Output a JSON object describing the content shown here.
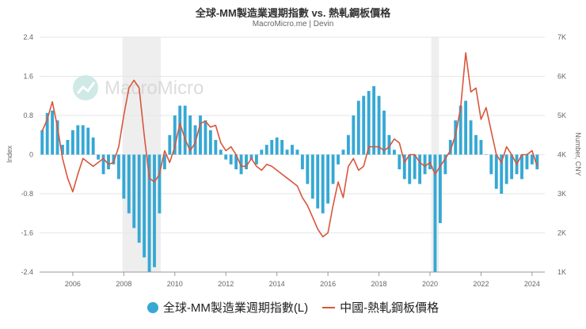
{
  "title": "全球-MM製造業週期指數 vs. 熱軋鋼板價格",
  "subtitle": "MacroMicro.me | Devin",
  "watermark": "MacroMicro",
  "colors": {
    "bars": "#36a8d4",
    "line": "#d9553b",
    "recession": "#eeeeee",
    "grid": "#e6e6e6"
  },
  "chart_data": {
    "type": "bar+line",
    "left_axis": {
      "label": "Index",
      "ylim": [
        -2.4,
        2.4
      ],
      "ticks": [
        "2.4",
        "1.6",
        "0.8",
        "0",
        "-0.8",
        "-1.6",
        "-2.4"
      ],
      "tick_values": [
        2.4,
        1.6,
        0.8,
        0,
        -0.8,
        -1.6,
        -2.4
      ]
    },
    "right_axis": {
      "label": "Number, CNY",
      "ylim": [
        1000,
        7000
      ],
      "ticks": [
        "7K",
        "6K",
        "5K",
        "4K",
        "3K",
        "2K",
        "1K"
      ],
      "tick_values": [
        7000,
        6000,
        5000,
        4000,
        3000,
        2000,
        1000
      ]
    },
    "x_axis": {
      "xlim": [
        2004.7,
        2024.5
      ],
      "ticks": [
        "2006",
        "2008",
        "2010",
        "2012",
        "2014",
        "2016",
        "2018",
        "2020",
        "2022",
        "2024"
      ],
      "tick_values": [
        2006,
        2008,
        2010,
        2012,
        2014,
        2016,
        2018,
        2020,
        2022,
        2024
      ]
    },
    "shaded_periods": [
      [
        2007.95,
        2009.45
      ],
      [
        2020.05,
        2020.35
      ]
    ],
    "series": [
      {
        "name": "全球-MM製造業週期指數(L)",
        "type": "bar",
        "axis": "left",
        "points": [
          [
            2004.8,
            0.5
          ],
          [
            2005.0,
            0.85
          ],
          [
            2005.2,
            0.9
          ],
          [
            2005.4,
            0.7
          ],
          [
            2005.6,
            0.2
          ],
          [
            2005.8,
            0.3
          ],
          [
            2006.0,
            0.5
          ],
          [
            2006.2,
            0.6
          ],
          [
            2006.4,
            0.6
          ],
          [
            2006.6,
            0.55
          ],
          [
            2006.8,
            0.35
          ],
          [
            2007.0,
            -0.1
          ],
          [
            2007.2,
            -0.4
          ],
          [
            2007.4,
            -0.3
          ],
          [
            2007.6,
            -0.2
          ],
          [
            2007.8,
            -0.5
          ],
          [
            2008.0,
            -0.9
          ],
          [
            2008.2,
            -1.2
          ],
          [
            2008.4,
            -1.5
          ],
          [
            2008.6,
            -1.8
          ],
          [
            2008.8,
            -2.1
          ],
          [
            2009.0,
            -2.4
          ],
          [
            2009.2,
            -2.3
          ],
          [
            2009.4,
            -1.2
          ],
          [
            2009.6,
            -0.3
          ],
          [
            2009.8,
            0.4
          ],
          [
            2010.0,
            0.8
          ],
          [
            2010.2,
            1.0
          ],
          [
            2010.4,
            1.0
          ],
          [
            2010.6,
            0.8
          ],
          [
            2010.8,
            0.6
          ],
          [
            2011.0,
            0.8
          ],
          [
            2011.2,
            0.7
          ],
          [
            2011.4,
            0.5
          ],
          [
            2011.6,
            0.3
          ],
          [
            2011.8,
            0.1
          ],
          [
            2012.0,
            -0.1
          ],
          [
            2012.2,
            -0.2
          ],
          [
            2012.4,
            -0.3
          ],
          [
            2012.6,
            -0.4
          ],
          [
            2012.8,
            -0.3
          ],
          [
            2013.0,
            -0.1
          ],
          [
            2013.2,
            -0.2
          ],
          [
            2013.4,
            0.1
          ],
          [
            2013.6,
            0.2
          ],
          [
            2013.8,
            0.3
          ],
          [
            2014.0,
            0.35
          ],
          [
            2014.2,
            0.3
          ],
          [
            2014.4,
            0.1
          ],
          [
            2014.6,
            0.2
          ],
          [
            2014.8,
            0.1
          ],
          [
            2015.0,
            -0.3
          ],
          [
            2015.2,
            -0.6
          ],
          [
            2015.4,
            -0.9
          ],
          [
            2015.6,
            -1.1
          ],
          [
            2015.8,
            -1.2
          ],
          [
            2016.0,
            -1.0
          ],
          [
            2016.2,
            -0.6
          ],
          [
            2016.4,
            -0.2
          ],
          [
            2016.6,
            0.1
          ],
          [
            2016.8,
            0.4
          ],
          [
            2017.0,
            0.8
          ],
          [
            2017.2,
            1.1
          ],
          [
            2017.4,
            1.2
          ],
          [
            2017.6,
            1.3
          ],
          [
            2017.8,
            1.4
          ],
          [
            2018.0,
            1.2
          ],
          [
            2018.2,
            0.9
          ],
          [
            2018.4,
            0.4
          ],
          [
            2018.6,
            0.1
          ],
          [
            2018.8,
            -0.3
          ],
          [
            2019.0,
            -0.5
          ],
          [
            2019.2,
            -0.6
          ],
          [
            2019.4,
            -0.5
          ],
          [
            2019.6,
            -0.6
          ],
          [
            2019.8,
            -0.4
          ],
          [
            2020.0,
            -0.3
          ],
          [
            2020.2,
            -2.4
          ],
          [
            2020.4,
            -1.4
          ],
          [
            2020.6,
            -0.4
          ],
          [
            2020.8,
            0.3
          ],
          [
            2021.0,
            0.7
          ],
          [
            2021.2,
            1.0
          ],
          [
            2021.4,
            1.1
          ],
          [
            2021.6,
            0.7
          ],
          [
            2021.8,
            0.4
          ],
          [
            2022.0,
            0.3
          ],
          [
            2022.2,
            0.0
          ],
          [
            2022.4,
            -0.4
          ],
          [
            2022.6,
            -0.7
          ],
          [
            2022.8,
            -0.8
          ],
          [
            2023.0,
            -0.6
          ],
          [
            2023.2,
            -0.5
          ],
          [
            2023.4,
            -0.4
          ],
          [
            2023.6,
            -0.5
          ],
          [
            2023.8,
            -0.3
          ],
          [
            2024.0,
            -0.2
          ],
          [
            2024.2,
            -0.3
          ]
        ]
      },
      {
        "name": "中國-熱軋鋼板價格",
        "type": "line",
        "axis": "right",
        "points": [
          [
            2004.8,
            4600
          ],
          [
            2005.0,
            4900
          ],
          [
            2005.2,
            5350
          ],
          [
            2005.4,
            4700
          ],
          [
            2005.6,
            3900
          ],
          [
            2005.8,
            3400
          ],
          [
            2006.0,
            3050
          ],
          [
            2006.2,
            3500
          ],
          [
            2006.4,
            3900
          ],
          [
            2006.6,
            3800
          ],
          [
            2006.8,
            3700
          ],
          [
            2007.0,
            3800
          ],
          [
            2007.2,
            3900
          ],
          [
            2007.4,
            3750
          ],
          [
            2007.6,
            3800
          ],
          [
            2007.8,
            4200
          ],
          [
            2008.0,
            5000
          ],
          [
            2008.2,
            5700
          ],
          [
            2008.4,
            5900
          ],
          [
            2008.6,
            5700
          ],
          [
            2008.8,
            4500
          ],
          [
            2009.0,
            3400
          ],
          [
            2009.2,
            3300
          ],
          [
            2009.4,
            3500
          ],
          [
            2009.6,
            4100
          ],
          [
            2009.8,
            3800
          ],
          [
            2010.0,
            4200
          ],
          [
            2010.2,
            4800
          ],
          [
            2010.4,
            4400
          ],
          [
            2010.6,
            4100
          ],
          [
            2010.8,
            4300
          ],
          [
            2011.0,
            4800
          ],
          [
            2011.2,
            4850
          ],
          [
            2011.4,
            4700
          ],
          [
            2011.6,
            4750
          ],
          [
            2011.8,
            4300
          ],
          [
            2012.0,
            4100
          ],
          [
            2012.2,
            4200
          ],
          [
            2012.4,
            4000
          ],
          [
            2012.6,
            3700
          ],
          [
            2012.8,
            3700
          ],
          [
            2013.0,
            3900
          ],
          [
            2013.2,
            3700
          ],
          [
            2013.4,
            3600
          ],
          [
            2013.6,
            3750
          ],
          [
            2013.8,
            3700
          ],
          [
            2014.0,
            3600
          ],
          [
            2014.2,
            3500
          ],
          [
            2014.4,
            3400
          ],
          [
            2014.6,
            3300
          ],
          [
            2014.8,
            3200
          ],
          [
            2015.0,
            2900
          ],
          [
            2015.2,
            2700
          ],
          [
            2015.4,
            2400
          ],
          [
            2015.6,
            2100
          ],
          [
            2015.8,
            1900
          ],
          [
            2016.0,
            2000
          ],
          [
            2016.2,
            2700
          ],
          [
            2016.4,
            3300
          ],
          [
            2016.6,
            2900
          ],
          [
            2016.8,
            3700
          ],
          [
            2017.0,
            3900
          ],
          [
            2017.2,
            3600
          ],
          [
            2017.4,
            3700
          ],
          [
            2017.6,
            4200
          ],
          [
            2017.8,
            4200
          ],
          [
            2018.0,
            4200
          ],
          [
            2018.2,
            4100
          ],
          [
            2018.4,
            4200
          ],
          [
            2018.6,
            4400
          ],
          [
            2018.8,
            4300
          ],
          [
            2019.0,
            3800
          ],
          [
            2019.2,
            4000
          ],
          [
            2019.4,
            4000
          ],
          [
            2019.6,
            3800
          ],
          [
            2019.8,
            3700
          ],
          [
            2020.0,
            3800
          ],
          [
            2020.2,
            3500
          ],
          [
            2020.4,
            3700
          ],
          [
            2020.6,
            3900
          ],
          [
            2020.8,
            4100
          ],
          [
            2021.0,
            4500
          ],
          [
            2021.2,
            5200
          ],
          [
            2021.4,
            6600
          ],
          [
            2021.6,
            5600
          ],
          [
            2021.8,
            5700
          ],
          [
            2022.0,
            4900
          ],
          [
            2022.2,
            5200
          ],
          [
            2022.4,
            4600
          ],
          [
            2022.6,
            4000
          ],
          [
            2022.8,
            3800
          ],
          [
            2023.0,
            4200
          ],
          [
            2023.2,
            4000
          ],
          [
            2023.4,
            3750
          ],
          [
            2023.6,
            4000
          ],
          [
            2023.8,
            4000
          ],
          [
            2024.0,
            4100
          ],
          [
            2024.2,
            3700
          ]
        ]
      }
    ],
    "legend": [
      {
        "label": "全球-MM製造業週期指數(L)",
        "marker": "circle"
      },
      {
        "label": "中國-熱軋鋼板價格",
        "marker": "line"
      }
    ],
    "legend_position": "bottom-center",
    "grid": true
  }
}
